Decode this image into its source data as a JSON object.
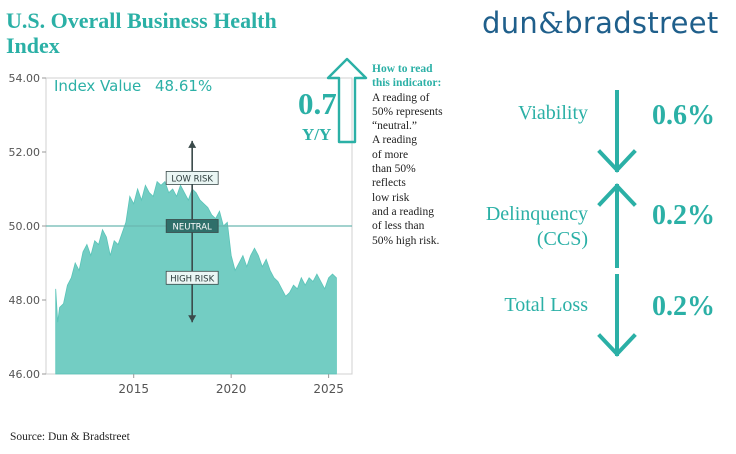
{
  "header": {
    "title": "U.S. Overall Business Health Index",
    "logo_text_left": "dun",
    "logo_amp": "&",
    "logo_text_right": "bradstreet"
  },
  "chart_data": {
    "type": "area",
    "annotation_index_label": "Index Value",
    "annotation_index_value": "48.61%",
    "ylim": [
      46,
      54
    ],
    "yticks": [
      "46.00",
      "48.00",
      "50.00",
      "52.00",
      "54.00"
    ],
    "xlim": [
      2010.5,
      2026.2
    ],
    "xticks": [
      "2015",
      "2020",
      "2025"
    ],
    "reference_line": 50,
    "labels": {
      "low_risk": "LOW RISK",
      "neutral": "NEUTRAL",
      "high_risk": "HIGH RISK"
    },
    "series": [
      {
        "x": [
          2011.0,
          2011.1,
          2011.2,
          2011.4,
          2011.6,
          2011.8,
          2012.0,
          2012.2,
          2012.4,
          2012.6,
          2012.8,
          2013.0,
          2013.2,
          2013.4,
          2013.6,
          2013.8,
          2014.0,
          2014.2,
          2014.4,
          2014.6,
          2014.8,
          2015.0,
          2015.2,
          2015.4,
          2015.6,
          2015.8,
          2016.0,
          2016.2,
          2016.4,
          2016.6,
          2016.8,
          2017.0,
          2017.2,
          2017.4,
          2017.6,
          2017.8,
          2018.0,
          2018.2,
          2018.4,
          2018.6,
          2018.8,
          2019.0,
          2019.2,
          2019.4,
          2019.6,
          2019.8,
          2020.0,
          2020.2,
          2020.4,
          2020.6,
          2020.8,
          2021.0,
          2021.2,
          2021.4,
          2021.6,
          2021.8,
          2022.0,
          2022.2,
          2022.4,
          2022.6,
          2022.8,
          2023.0,
          2023.2,
          2023.4,
          2023.6,
          2023.8,
          2024.0,
          2024.2,
          2024.4,
          2024.6,
          2024.8,
          2025.0,
          2025.2,
          2025.4
        ],
        "values": [
          48.3,
          47.4,
          47.8,
          47.9,
          48.4,
          48.6,
          49.0,
          48.8,
          49.3,
          49.5,
          49.2,
          49.6,
          49.5,
          49.9,
          49.7,
          49.2,
          49.6,
          49.5,
          49.8,
          50.1,
          50.8,
          50.6,
          51.0,
          50.7,
          51.1,
          50.9,
          50.8,
          51.2,
          51.1,
          51.2,
          50.9,
          51.0,
          50.8,
          51.1,
          50.9,
          50.7,
          51.0,
          50.9,
          50.7,
          50.6,
          50.5,
          50.3,
          50.2,
          50.4,
          50.0,
          50.1,
          49.2,
          48.8,
          49.0,
          49.2,
          48.9,
          49.2,
          49.4,
          49.2,
          48.9,
          49.1,
          48.8,
          48.6,
          48.5,
          48.3,
          48.1,
          48.2,
          48.4,
          48.3,
          48.6,
          48.4,
          48.6,
          48.5,
          48.7,
          48.5,
          48.3,
          48.6,
          48.7,
          48.6
        ]
      }
    ]
  },
  "yoy": {
    "value": "0.7",
    "label": "Y/Y"
  },
  "howto": {
    "heading_line1": "How to read",
    "heading_line2": "this indicator:",
    "lines": [
      "A reading of",
      "50% represents",
      "“neutral.”",
      "A reading",
      "of more",
      "than 50%",
      "reflects",
      "low risk",
      "and a reading",
      "of less than",
      "50% high risk."
    ]
  },
  "metrics": [
    {
      "name": "Viability",
      "value": "0.6%",
      "direction": "down"
    },
    {
      "name_line1": "Delinquency",
      "name_line2": "(CCS)",
      "value": "0.2%",
      "direction": "up"
    },
    {
      "name": "Total Loss",
      "value": "0.2%",
      "direction": "down"
    }
  ],
  "footer": {
    "source": "Source: Dun & Bradstreet"
  },
  "colors": {
    "accent": "#2bb0a6",
    "area_fill": "#5ac4b8",
    "logo": "#1f5f8b",
    "neutral_line": "#6ab7b0"
  }
}
